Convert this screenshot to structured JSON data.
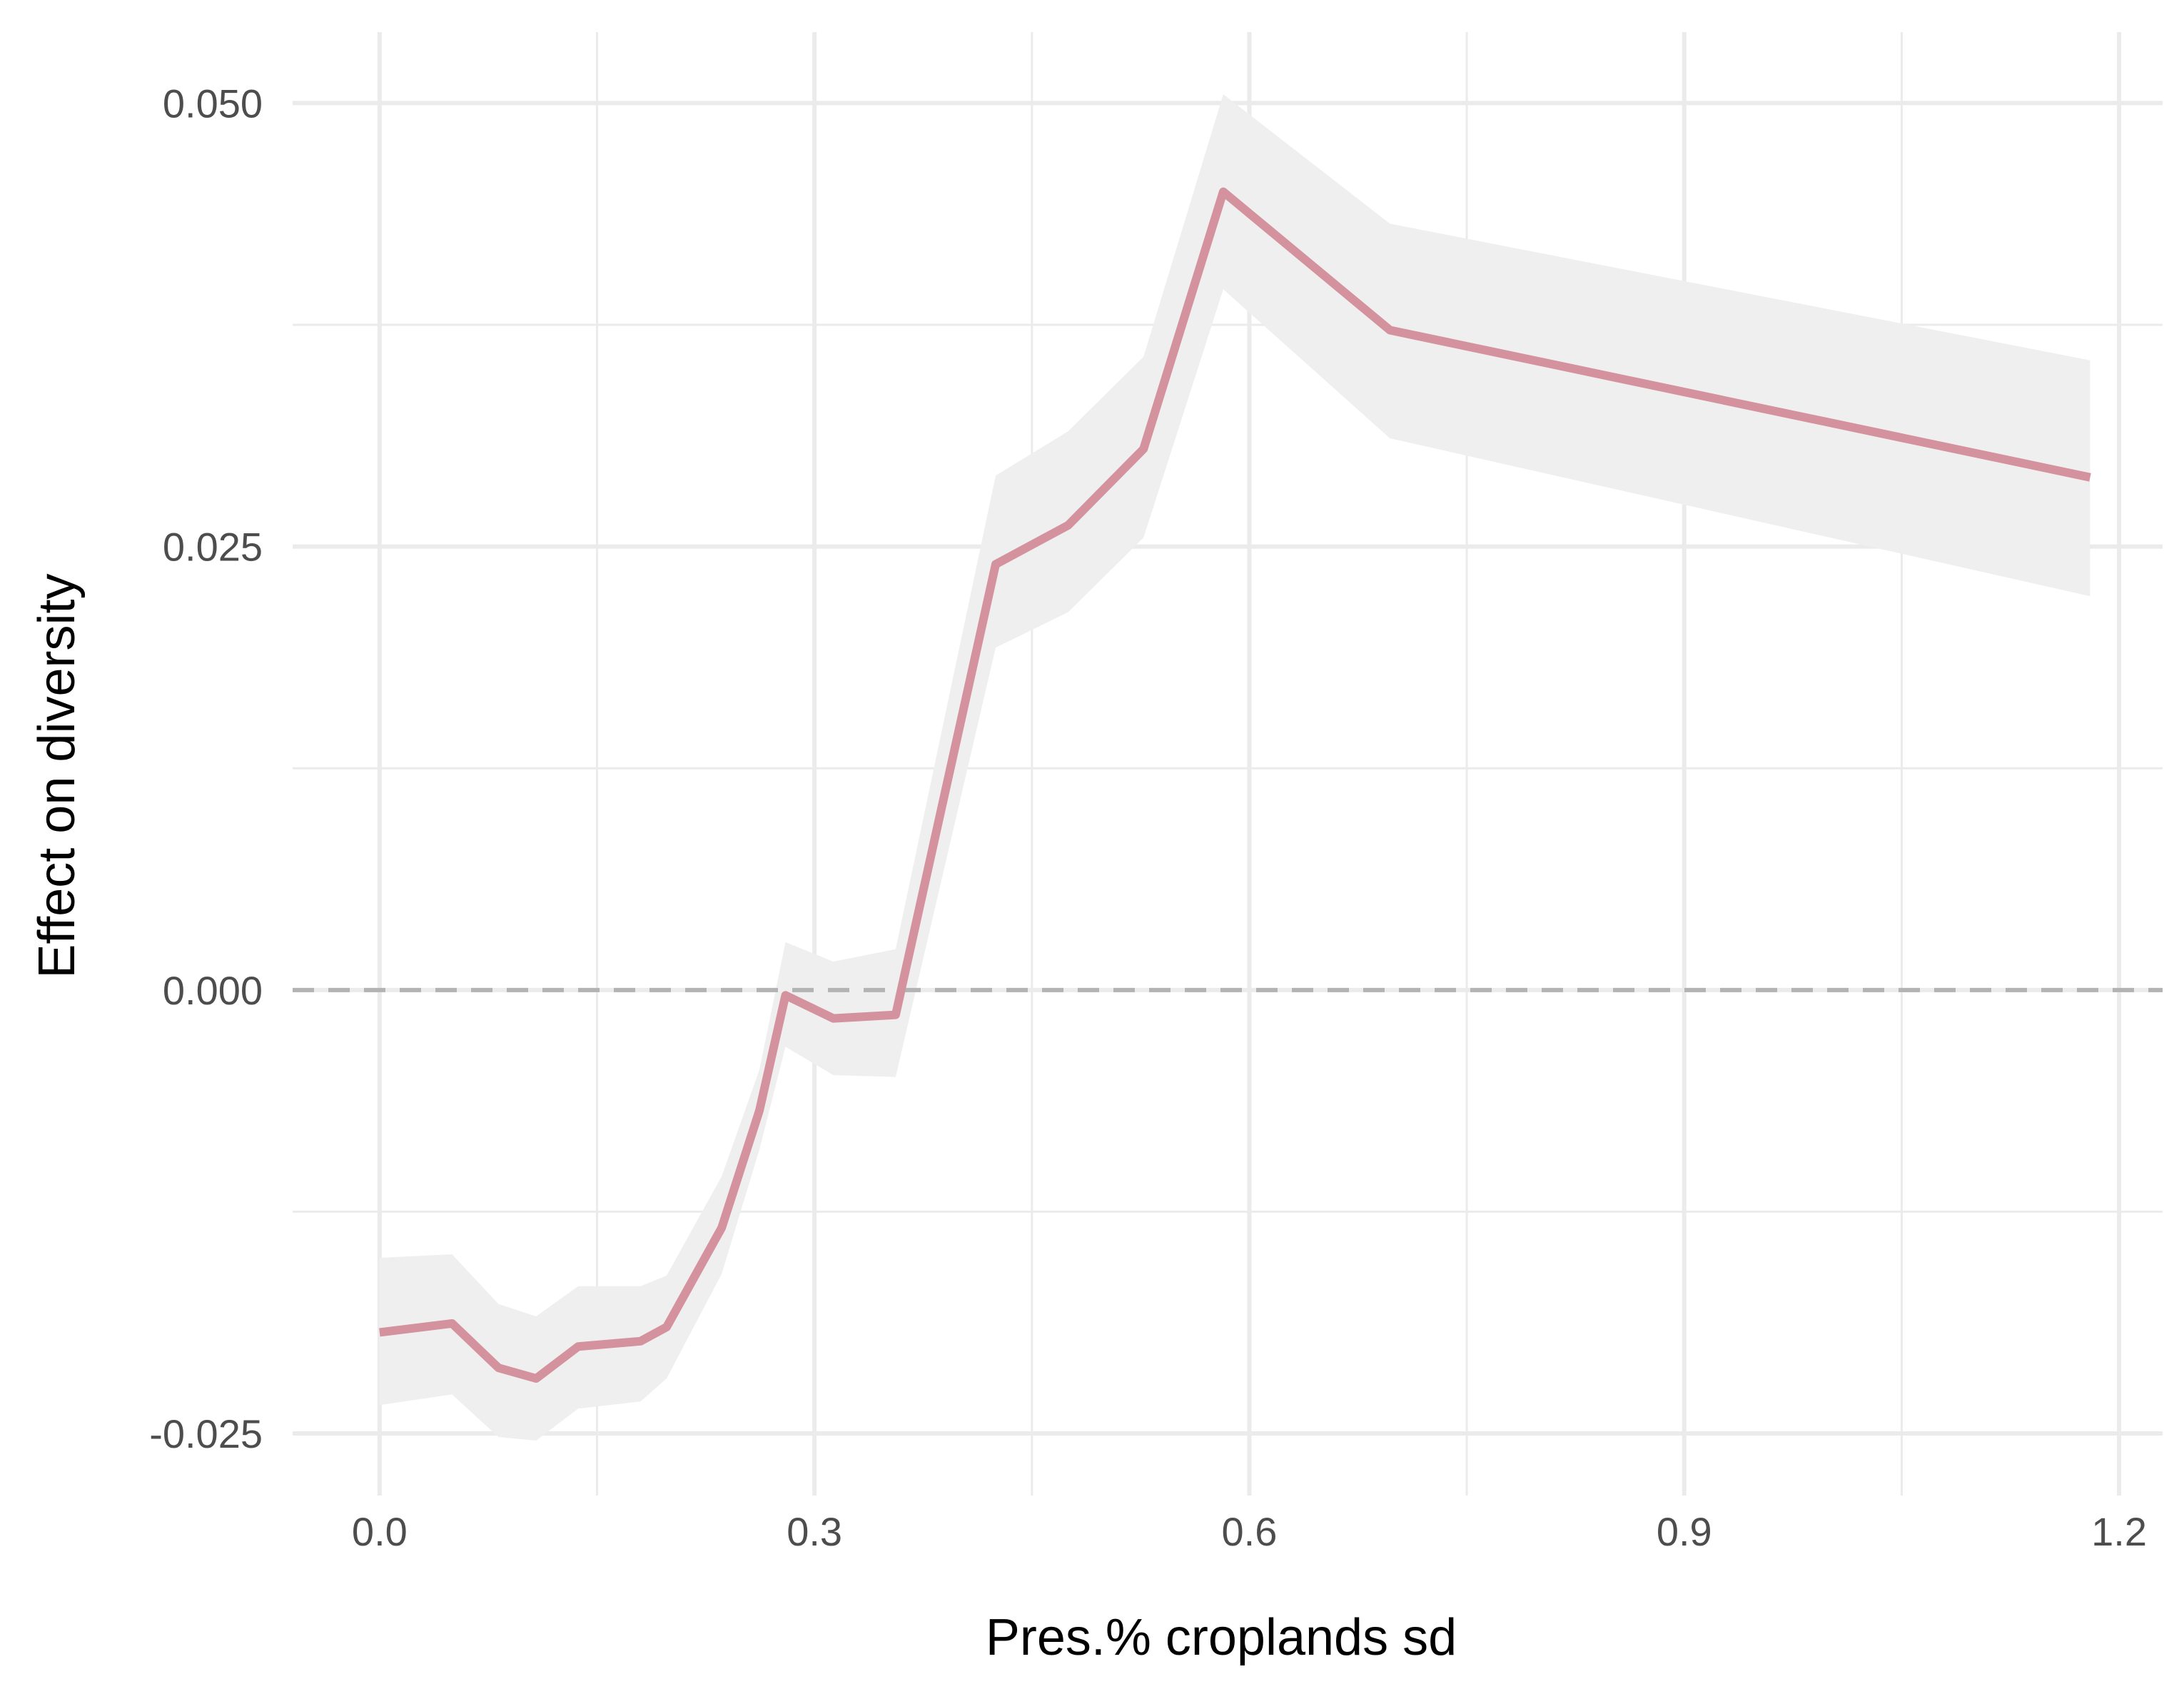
{
  "chart_data": {
    "type": "line",
    "title": "",
    "xlabel": "Pres.% croplands sd",
    "ylabel": "Effect on diversity",
    "xlim": [
      -0.06,
      1.23
    ],
    "ylim": [
      -0.0285,
      0.054
    ],
    "x_ticks": [
      0.0,
      0.3,
      0.6,
      0.9,
      1.2
    ],
    "x_tick_labels": [
      "0.0",
      "0.3",
      "0.6",
      "0.9",
      "1.2"
    ],
    "y_ticks": [
      -0.025,
      0.0,
      0.025,
      0.05
    ],
    "y_tick_labels": [
      "-0.025",
      "0.000",
      "0.025",
      "0.050"
    ],
    "grid": true,
    "reference_line": {
      "y": 0.0,
      "style": "dashed",
      "color": "#b3b3b3"
    },
    "series": [
      {
        "color": "#d4919e",
        "band_color": "#efefef",
        "x": [
          0.0,
          0.05,
          0.082,
          0.108,
          0.137,
          0.18,
          0.198,
          0.236,
          0.262,
          0.28,
          0.313,
          0.356,
          0.425,
          0.475,
          0.527,
          0.582,
          0.697,
          1.18
        ],
        "y": [
          -0.0193,
          -0.0188,
          -0.0213,
          -0.0219,
          -0.0201,
          -0.0198,
          -0.019,
          -0.0134,
          -0.0068,
          -0.0003,
          -0.0016,
          -0.0014,
          0.024,
          0.0262,
          0.0305,
          0.045,
          0.0372,
          0.0289
        ],
        "lower": [
          -0.0234,
          -0.0228,
          -0.0252,
          -0.0254,
          -0.0236,
          -0.0232,
          -0.0219,
          -0.016,
          -0.009,
          -0.0032,
          -0.0048,
          -0.0049,
          0.0193,
          0.0213,
          0.0255,
          0.0395,
          0.0311,
          0.0222
        ],
        "upper": [
          -0.0151,
          -0.0149,
          -0.0177,
          -0.0184,
          -0.0167,
          -0.0167,
          -0.0161,
          -0.0105,
          -0.0045,
          0.0027,
          0.0016,
          0.0023,
          0.029,
          0.0315,
          0.0357,
          0.0505,
          0.0432,
          0.0355
        ]
      }
    ]
  }
}
